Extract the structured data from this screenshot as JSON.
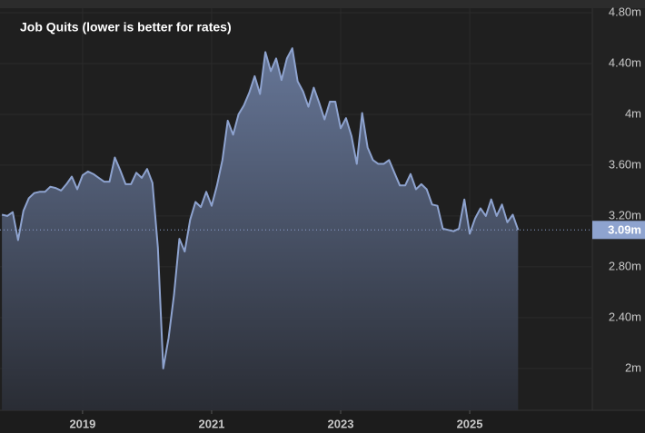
{
  "chart_data": {
    "type": "area",
    "title": "Job Quits (lower is better for rates)",
    "x": [
      2017.75,
      2017.833,
      2017.917,
      2018,
      2018.083,
      2018.167,
      2018.25,
      2018.333,
      2018.417,
      2018.5,
      2018.583,
      2018.667,
      2018.75,
      2018.833,
      2018.917,
      2019,
      2019.083,
      2019.167,
      2019.25,
      2019.333,
      2019.417,
      2019.5,
      2019.583,
      2019.667,
      2019.75,
      2019.833,
      2019.917,
      2020,
      2020.083,
      2020.167,
      2020.25,
      2020.333,
      2020.417,
      2020.5,
      2020.583,
      2020.667,
      2020.75,
      2020.833,
      2020.917,
      2021,
      2021.083,
      2021.167,
      2021.25,
      2021.333,
      2021.417,
      2021.5,
      2021.583,
      2021.667,
      2021.75,
      2021.833,
      2021.917,
      2022,
      2022.083,
      2022.167,
      2022.25,
      2022.333,
      2022.417,
      2022.5,
      2022.583,
      2022.667,
      2022.75,
      2022.833,
      2022.917,
      2023,
      2023.083,
      2023.167,
      2023.25,
      2023.333,
      2023.417,
      2023.5,
      2023.583,
      2023.667,
      2023.75,
      2023.833,
      2023.917,
      2024,
      2024.083,
      2024.167,
      2024.25,
      2024.333,
      2024.417,
      2024.5,
      2024.583,
      2024.667,
      2024.75,
      2024.833,
      2024.917,
      2025,
      2025.083,
      2025.167,
      2025.25,
      2025.333,
      2025.417,
      2025.5,
      2025.583,
      2025.667,
      2025.75
    ],
    "values": [
      3.21,
      3.2,
      3.23,
      3.01,
      3.24,
      3.34,
      3.38,
      3.39,
      3.39,
      3.43,
      3.42,
      3.4,
      3.45,
      3.51,
      3.41,
      3.52,
      3.55,
      3.53,
      3.5,
      3.47,
      3.47,
      3.66,
      3.56,
      3.45,
      3.45,
      3.54,
      3.5,
      3.57,
      3.46,
      2.95,
      2.0,
      2.24,
      2.58,
      3.02,
      2.92,
      3.17,
      3.31,
      3.27,
      3.39,
      3.28,
      3.44,
      3.64,
      3.95,
      3.84,
      4.0,
      4.07,
      4.17,
      4.3,
      4.16,
      4.49,
      4.34,
      4.44,
      4.27,
      4.44,
      4.52,
      4.26,
      4.18,
      4.06,
      4.21,
      4.09,
      3.96,
      4.1,
      4.1,
      3.89,
      3.97,
      3.83,
      3.61,
      4.01,
      3.74,
      3.64,
      3.61,
      3.61,
      3.64,
      3.54,
      3.44,
      3.44,
      3.53,
      3.41,
      3.45,
      3.41,
      3.29,
      3.28,
      3.1,
      3.09,
      3.08,
      3.1,
      3.33,
      3.06,
      3.18,
      3.26,
      3.2,
      3.33,
      3.2,
      3.29,
      3.15,
      3.21,
      3.09
    ],
    "color": "#8ea3cf",
    "xlim": [
      2017.72,
      2026.9
    ],
    "xticks": [
      2019,
      2021,
      2023,
      2025
    ],
    "ylim": [
      1.67,
      4.9
    ],
    "yticks": [
      {
        "value": 2,
        "label": "2m"
      },
      {
        "value": 2.4,
        "label": "2.40m"
      },
      {
        "value": 2.8,
        "label": "2.80m"
      },
      {
        "value": 3.2,
        "label": "3.20m"
      },
      {
        "value": 3.6,
        "label": "3.60m"
      },
      {
        "value": 4,
        "label": "4m"
      },
      {
        "value": 4.4,
        "label": "4.40m"
      },
      {
        "value": 4.8,
        "label": "4.80m"
      }
    ],
    "current_value": {
      "value": 3.09,
      "label": "3.09m"
    },
    "grid": true
  }
}
